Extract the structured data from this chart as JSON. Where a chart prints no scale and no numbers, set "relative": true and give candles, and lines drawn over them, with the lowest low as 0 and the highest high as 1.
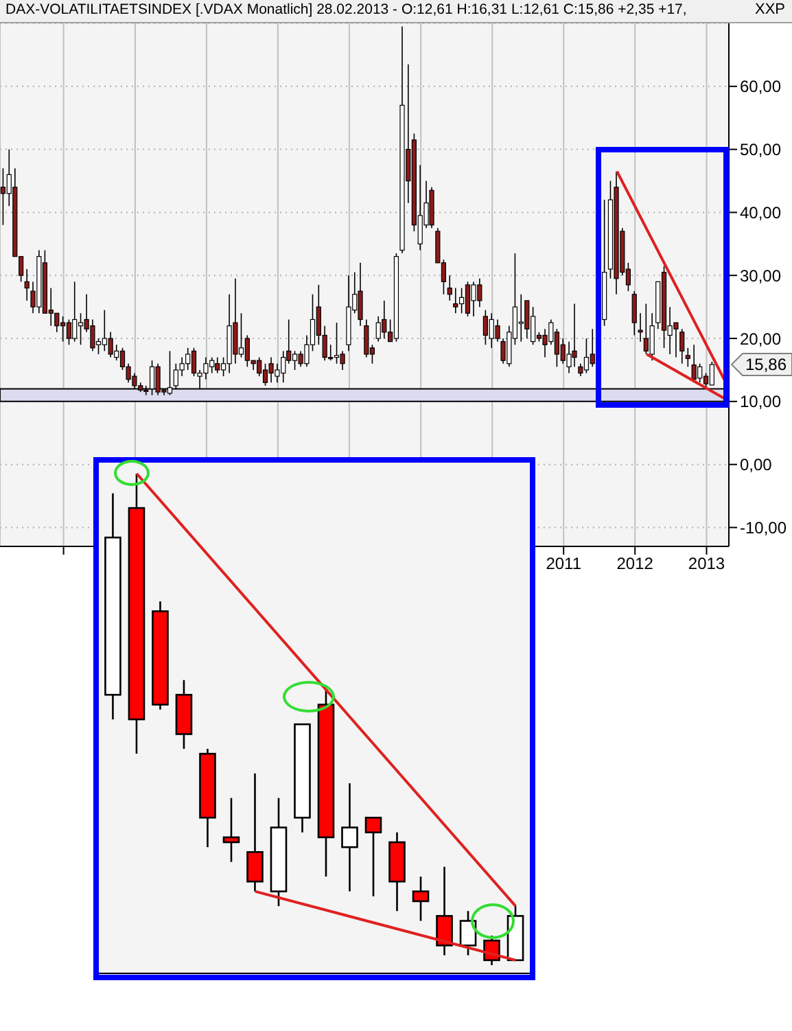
{
  "chart_data": [
    {
      "type": "candlestick",
      "title": "DAX-VOLATILITAETSINDEX [.VDAX  Monatlich] 28.02.2013 - O:12,61 H:16,31 L:12,61 C:15,86 +2,35 +17,",
      "x": [
        "2003-03",
        "2003-04",
        "2003-05",
        "2003-06",
        "2003-07",
        "2003-08",
        "2003-09",
        "2003-10",
        "2003-11",
        "2003-12",
        "2004-01",
        "2004-02",
        "2004-03",
        "2004-04",
        "2004-05",
        "2004-06",
        "2004-07",
        "2004-08",
        "2004-09",
        "2004-10",
        "2004-11",
        "2004-12",
        "2005-01",
        "2005-02",
        "2005-03",
        "2005-04",
        "2005-05",
        "2005-06",
        "2005-07",
        "2005-08",
        "2005-09",
        "2005-10",
        "2005-11",
        "2005-12",
        "2006-01",
        "2006-02",
        "2006-03",
        "2006-04",
        "2006-05",
        "2006-06",
        "2006-07",
        "2006-08",
        "2006-09",
        "2006-10",
        "2006-11",
        "2006-12",
        "2007-01",
        "2007-02",
        "2007-03",
        "2007-04",
        "2007-05",
        "2007-06",
        "2007-07",
        "2007-08",
        "2007-09",
        "2007-10",
        "2007-11",
        "2007-12",
        "2008-01",
        "2008-02",
        "2008-03",
        "2008-04",
        "2008-05",
        "2008-06",
        "2008-07",
        "2008-08",
        "2008-09",
        "2008-10",
        "2008-11",
        "2008-12",
        "2009-01",
        "2009-02",
        "2009-03",
        "2009-04",
        "2009-05",
        "2009-06",
        "2009-07",
        "2009-08",
        "2009-09",
        "2009-10",
        "2009-11",
        "2009-12",
        "2010-01",
        "2010-02",
        "2010-03",
        "2010-04",
        "2010-05",
        "2010-06",
        "2010-07",
        "2010-08",
        "2010-09",
        "2010-10",
        "2010-11",
        "2010-12",
        "2011-01",
        "2011-02",
        "2011-03",
        "2011-04",
        "2011-05",
        "2011-06",
        "2011-08",
        "2011-09",
        "2011-10",
        "2011-11",
        "2011-12",
        "2012-01",
        "2012-02",
        "2012-03",
        "2012-04",
        "2012-05",
        "2012-06",
        "2012-07",
        "2012-08",
        "2012-09",
        "2012-10",
        "2012-11",
        "2012-12",
        "2013-01",
        "2013-02"
      ],
      "series": [
        {
          "type": "candlestick",
          "ohlc": [
            [
              44,
              47,
              38,
              43
            ],
            [
              43,
              50,
              41,
              46
            ],
            [
              44,
              47,
              33,
              33
            ],
            [
              33,
              33,
              29,
              30
            ],
            [
              29,
              31,
              26,
              28
            ],
            [
              27.5,
              29,
              24,
              25
            ],
            [
              25,
              34,
              24,
              33
            ],
            [
              32,
              34,
              24,
              24
            ],
            [
              24.5,
              28,
              22,
              24
            ],
            [
              24,
              24,
              21,
              22
            ],
            [
              22.5,
              23.5,
              19.5,
              22
            ],
            [
              22.5,
              23,
              19,
              20
            ],
            [
              20,
              29,
              19.5,
              23
            ],
            [
              22,
              24,
              19,
              22.5
            ],
            [
              23,
              27,
              21,
              21.5
            ],
            [
              22,
              23,
              18,
              18.5
            ],
            [
              19,
              20,
              17.5,
              19.5
            ],
            [
              19,
              24.5,
              18,
              20
            ],
            [
              20,
              21,
              17,
              17.5
            ],
            [
              17,
              19,
              16.5,
              18
            ],
            [
              18,
              18.5,
              15,
              15.5
            ],
            [
              15.5,
              16,
              13,
              13.5
            ],
            [
              14,
              14.5,
              12,
              12.5
            ],
            [
              12.5,
              13,
              11.5,
              11.8
            ],
            [
              11.8,
              12.5,
              11,
              11.6
            ],
            [
              12,
              16.5,
              11,
              15.5
            ],
            [
              15.5,
              16,
              11,
              11.5
            ],
            [
              11.8,
              12,
              11,
              11.5
            ],
            [
              11.3,
              18,
              11,
              12.2
            ],
            [
              12.5,
              16,
              12,
              15
            ],
            [
              15,
              17,
              14,
              16
            ],
            [
              16,
              18.5,
              15,
              17.5
            ],
            [
              18,
              18.5,
              14,
              14.5
            ],
            [
              14,
              15,
              12,
              14.5
            ],
            [
              14.5,
              17,
              13.5,
              16
            ],
            [
              15.5,
              17,
              14.5,
              16.5
            ],
            [
              16,
              17,
              14.5,
              15
            ],
            [
              15,
              17,
              14,
              16
            ],
            [
              16,
              27,
              14.5,
              22
            ],
            [
              22.5,
              29.5,
              16,
              17.5
            ],
            [
              17.5,
              24,
              17,
              18.5
            ],
            [
              20,
              20.5,
              15.5,
              16.5
            ],
            [
              16.5,
              16.5,
              15,
              16
            ],
            [
              16.5,
              17,
              14,
              14.5
            ],
            [
              15,
              16,
              12.5,
              13
            ],
            [
              16,
              17,
              13,
              14.5
            ],
            [
              14,
              16,
              13,
              15
            ],
            [
              14.5,
              18,
              13,
              17
            ],
            [
              18,
              23,
              16,
              16.5
            ],
            [
              16.5,
              18,
              15,
              17.5
            ],
            [
              17.5,
              18,
              15.5,
              16
            ],
            [
              16,
              20.5,
              15.5,
              19
            ],
            [
              19,
              27,
              18,
              23
            ],
            [
              25,
              28.5,
              19,
              20.5
            ],
            [
              20.5,
              22,
              16.5,
              17
            ],
            [
              17,
              19,
              16.5,
              16.8
            ],
            [
              17,
              22.5,
              16,
              17.3
            ],
            [
              17.5,
              18,
              15,
              16
            ],
            [
              19,
              30,
              18,
              25
            ],
            [
              24.5,
              30.5,
              24,
              27
            ],
            [
              27.5,
              32,
              22,
              23
            ],
            [
              22,
              23,
              17,
              17.5
            ],
            [
              18.5,
              19,
              16,
              17.5
            ],
            [
              20,
              23.5,
              19.5,
              22.5
            ],
            [
              23,
              26,
              20,
              21
            ],
            [
              21,
              23,
              19.5,
              19.5
            ],
            [
              20,
              33.5,
              19.5,
              33
            ],
            [
              34,
              69.5,
              33.5,
              57
            ],
            [
              50,
              63.5,
              41.5,
              45
            ],
            [
              51.5,
              52.5,
              37,
              38
            ],
            [
              35,
              47.5,
              34,
              39.5
            ],
            [
              38,
              45,
              37.5,
              41.5
            ],
            [
              43.5,
              44,
              37.5,
              38
            ],
            [
              37,
              37.5,
              32,
              32
            ],
            [
              32,
              32.5,
              27,
              29
            ],
            [
              28,
              30,
              26,
              27
            ],
            [
              25.5,
              28,
              24,
              25
            ],
            [
              25.5,
              28,
              24,
              26.5
            ],
            [
              28.5,
              29,
              23.5,
              24
            ],
            [
              26,
              29,
              23.5,
              28.5
            ],
            [
              28.5,
              29.5,
              25,
              26
            ],
            [
              23.5,
              24.5,
              19,
              20.5
            ],
            [
              20,
              24,
              18.5,
              23
            ],
            [
              22,
              23,
              19.5,
              20
            ],
            [
              19.5,
              20,
              16,
              16.5
            ],
            [
              16,
              22,
              15.5,
              21
            ],
            [
              20,
              33.5,
              19,
              25
            ],
            [
              22.5,
              27,
              19.5,
              22.6
            ],
            [
              26,
              26,
              20,
              21.5
            ],
            [
              19.5,
              25,
              19,
              23.5
            ],
            [
              20.5,
              21,
              19.5,
              20
            ],
            [
              20.5,
              21.5,
              17,
              19
            ],
            [
              19.5,
              23,
              19,
              22.5
            ],
            [
              21,
              21.5,
              15.5,
              17.5
            ],
            [
              19,
              20,
              16,
              16.5
            ],
            [
              15.5,
              19.5,
              14.5,
              17.5
            ],
            [
              18,
              25.5,
              15.5,
              17
            ],
            [
              15.5,
              16,
              14,
              14.5
            ],
            [
              15,
              20,
              14.5,
              17
            ],
            [
              17.5,
              21.5,
              15.5,
              16
            ],
            [
              23,
              42,
              22,
              30.5
            ],
            [
              31,
              45,
              29.5,
              42
            ],
            [
              44,
              46.5,
              27,
              29.5
            ],
            [
              37,
              37.5,
              30,
              30.5
            ],
            [
              31,
              32,
              27.5,
              28.5
            ],
            [
              27,
              27.5,
              20.5,
              22.5
            ],
            [
              21.3,
              24,
              19.5,
              21
            ],
            [
              20,
              25.5,
              17.5,
              18
            ],
            [
              17.5,
              24,
              16.5,
              22
            ],
            [
              22.5,
              29,
              21.5,
              29
            ],
            [
              30.5,
              31.5,
              18.5,
              21.3
            ],
            [
              20.5,
              25,
              17.5,
              22
            ],
            [
              22.5,
              22.5,
              17,
              21.5
            ],
            [
              21,
              21.5,
              16,
              18
            ],
            [
              17.3,
              18.5,
              15.5,
              16.8
            ],
            [
              15.8,
              19,
              13,
              13.5
            ],
            [
              13.7,
              16,
              13,
              15.5
            ],
            [
              14,
              14.5,
              12.3,
              12.8
            ],
            [
              12.61,
              16.31,
              12.61,
              15.86
            ]
          ],
          "colors": [
            "#8b1a1a",
            "#ffffff",
            "#8b1a1a",
            "#8b1a1a",
            "#8b1a1a",
            "#8b1a1a",
            "#ffffff",
            "#8b1a1a",
            "#8b1a1a",
            "#8b1a1a",
            "#8b1a1a",
            "#8b1a1a",
            "#ffffff",
            "#ffffff",
            "#8b1a1a",
            "#8b1a1a",
            "#ffffff",
            "#ffffff",
            "#8b1a1a",
            "#ffffff",
            "#8b1a1a",
            "#8b1a1a",
            "#8b1a1a",
            "#8b1a1a",
            "#8b1a1a",
            "#ffffff",
            "#8b1a1a",
            "#8b1a1a",
            "#ffffff",
            "#ffffff",
            "#ffffff",
            "#ffffff",
            "#8b1a1a",
            "#ffffff",
            "#ffffff",
            "#ffffff",
            "#8b1a1a",
            "#ffffff",
            "#ffffff",
            "#8b1a1a",
            "#ffffff",
            "#8b1a1a",
            "#8b1a1a",
            "#8b1a1a",
            "#8b1a1a",
            "#8b1a1a",
            "#ffffff",
            "#ffffff",
            "#8b1a1a",
            "#ffffff",
            "#8b1a1a",
            "#ffffff",
            "#ffffff",
            "#8b1a1a",
            "#8b1a1a",
            "#8b1a1a",
            "#ffffff",
            "#8b1a1a",
            "#ffffff",
            "#ffffff",
            "#8b1a1a",
            "#8b1a1a",
            "#8b1a1a",
            "#ffffff",
            "#8b1a1a",
            "#8b1a1a",
            "#ffffff",
            "#ffffff",
            "#8b1a1a",
            "#8b1a1a",
            "#ffffff",
            "#ffffff",
            "#8b1a1a",
            "#8b1a1a",
            "#8b1a1a",
            "#8b1a1a",
            "#8b1a1a",
            "#ffffff",
            "#8b1a1a",
            "#ffffff",
            "#8b1a1a",
            "#8b1a1a",
            "#ffffff",
            "#8b1a1a",
            "#8b1a1a",
            "#ffffff",
            "#ffffff",
            "#ffffff",
            "#8b1a1a",
            "#ffffff",
            "#8b1a1a",
            "#8b1a1a",
            "#ffffff",
            "#8b1a1a",
            "#8b1a1a",
            "#ffffff",
            "#8b1a1a",
            "#8b1a1a",
            "#ffffff",
            "#8b1a1a",
            "#ffffff",
            "#ffffff",
            "#8b1a1a",
            "#8b1a1a",
            "#8b1a1a",
            "#8b1a1a",
            "#8b1a1a",
            "#8b1a1a",
            "#ffffff",
            "#ffffff",
            "#8b1a1a",
            "#ffffff",
            "#8b1a1a",
            "#8b1a1a",
            "#8b1a1a",
            "#8b1a1a",
            "#ffffff",
            "#8b1a1a",
            "#ffffff"
          ]
        },
        {
          "type": "line",
          "color": "#e02020",
          "x": [
            "2011-10",
            "2013-04"
          ],
          "values": [
            46.5,
            13.5
          ]
        },
        {
          "type": "line",
          "color": "#e02020",
          "x": [
            "2012-03",
            "2013-04"
          ],
          "values": [
            17.5,
            10.5
          ]
        }
      ],
      "xlim": [
        "2003-02-10",
        "2013-04-25"
      ],
      "xticks": [
        {
          "value": "2004-01",
          "label": null
        },
        {
          "value": "2005-01",
          "label": null
        },
        {
          "value": "2006-01",
          "label": null
        },
        {
          "value": "2007-01",
          "label": null
        },
        {
          "value": "2008-01",
          "label": null
        },
        {
          "value": "2009-01",
          "label": null
        },
        {
          "value": "2010-01",
          "label": null
        },
        {
          "value": "2011-01",
          "label": "2011"
        },
        {
          "value": "2012-01",
          "label": "2012"
        },
        {
          "value": "2013-01",
          "label": "2013"
        }
      ],
      "ylim": [
        -13,
        70
      ],
      "yticks": [
        {
          "value": -10,
          "label": "-10,00"
        },
        {
          "value": 0,
          "label": "0,00"
        },
        {
          "value": 10,
          "label": "10,00"
        },
        {
          "value": 20,
          "label": "20,00"
        },
        {
          "value": 30,
          "label": "30,00"
        },
        {
          "value": 40,
          "label": "40,00"
        },
        {
          "value": 50,
          "label": "50,00"
        },
        {
          "value": 60,
          "label": "60,00"
        }
      ],
      "grid": true,
      "bands": [
        {
          "axis": "y",
          "from": 10,
          "to": 12,
          "color": "#dcdcf0"
        }
      ],
      "annotations": [
        "XXP",
        "15,86"
      ]
    },
    {
      "type": "candlestick",
      "relative": true,
      "tick_labels": false,
      "categories": [
        null,
        null,
        null,
        null,
        null,
        null,
        null,
        null,
        null,
        null,
        null,
        null,
        null,
        null,
        null,
        null,
        null,
        null
      ],
      "series": [
        {
          "type": "candlestick",
          "ohlc": [
            [
              0.55,
              0.96,
              0.5,
              0.87
            ],
            [
              0.93,
              1,
              0.43,
              0.5
            ],
            [
              0.72,
              0.74,
              0.52,
              0.53
            ],
            [
              0.55,
              0.58,
              0.44,
              0.47
            ],
            [
              0.43,
              0.44,
              0.24,
              0.3
            ],
            [
              0.26,
              0.34,
              0.21,
              0.25
            ],
            [
              0.23,
              0.39,
              0.15,
              0.17
            ],
            [
              0.15,
              0.34,
              0.12,
              0.28
            ],
            [
              0.3,
              0.49,
              0.27,
              0.49
            ],
            [
              0.53,
              0.56,
              0.18,
              0.26
            ],
            [
              0.24,
              0.37,
              0.15,
              0.28
            ],
            [
              0.3,
              0.3,
              0.14,
              0.27
            ],
            [
              0.25,
              0.27,
              0.11,
              0.17
            ],
            [
              0.15,
              0.18,
              0.09,
              0.13
            ],
            [
              0.1,
              0.2,
              0.02,
              0.04
            ],
            [
              0.04,
              0.11,
              0.02,
              0.09
            ],
            [
              0.05,
              0.06,
              0,
              0.01
            ],
            [
              0.01,
              0.12,
              0.01,
              0.1
            ]
          ],
          "colors": [
            "#ffffff",
            "#ff0000",
            "#ff0000",
            "#ff0000",
            "#ff0000",
            "#ff0000",
            "#ff0000",
            "#ffffff",
            "#ffffff",
            "#ff0000",
            "#ffffff",
            "#ff0000",
            "#ff0000",
            "#ff0000",
            "#ff0000",
            "#ffffff",
            "#ff0000",
            "#ffffff"
          ]
        },
        {
          "type": "line",
          "color": "#e02020",
          "values": [
            null,
            1,
            null,
            null,
            null,
            null,
            null,
            null,
            null,
            null,
            null,
            null,
            null,
            null,
            null,
            null,
            null,
            0.12
          ]
        },
        {
          "type": "line",
          "color": "#e02020",
          "values": [
            null,
            null,
            null,
            null,
            null,
            null,
            0.15,
            null,
            null,
            null,
            null,
            null,
            null,
            null,
            null,
            null,
            null,
            0.01
          ]
        }
      ]
    }
  ]
}
